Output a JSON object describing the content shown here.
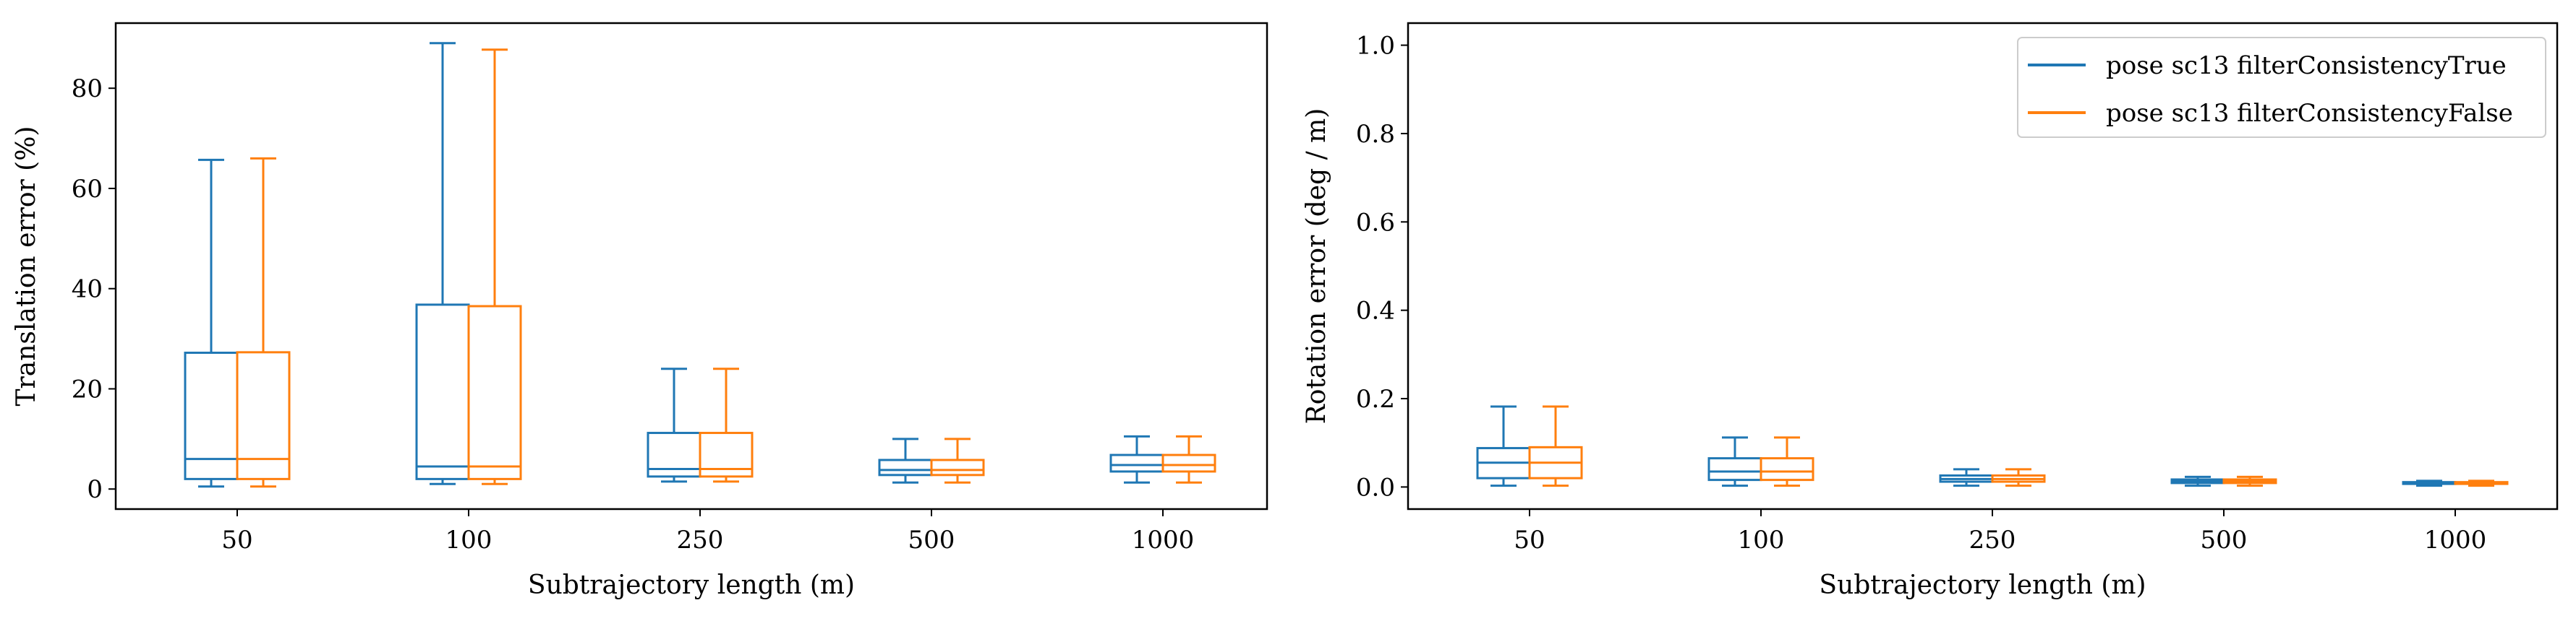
{
  "chart_data": [
    {
      "type": "box",
      "xlabel": "Subtrajectory length (m)",
      "ylabel": "Translation error (%)",
      "categories": [
        "50",
        "100",
        "250",
        "500",
        "1000"
      ],
      "ylim": [
        -4,
        93
      ],
      "yticks": [
        0,
        20,
        40,
        60,
        80
      ],
      "yticklabels": [
        "0",
        "20",
        "40",
        "60",
        "80"
      ],
      "grid": false,
      "series": [
        {
          "name": "pose sc13 filterConsistencyTrue",
          "color": "#1f77b4",
          "boxes": [
            {
              "whislo": 0.5,
              "q1": 2.0,
              "med": 6.0,
              "q3": 27.2,
              "whishi": 65.7
            },
            {
              "whislo": 1.0,
              "q1": 2.0,
              "med": 4.5,
              "q3": 36.8,
              "whishi": 89.0
            },
            {
              "whislo": 1.5,
              "q1": 2.5,
              "med": 4.0,
              "q3": 11.2,
              "whishi": 24.0
            },
            {
              "whislo": 1.3,
              "q1": 2.8,
              "med": 3.8,
              "q3": 5.8,
              "whishi": 10.0
            },
            {
              "whislo": 1.3,
              "q1": 3.5,
              "med": 4.8,
              "q3": 6.8,
              "whishi": 10.5
            }
          ]
        },
        {
          "name": "pose sc13 filterConsistencyFalse",
          "color": "#ff7f0e",
          "boxes": [
            {
              "whislo": 0.5,
              "q1": 2.0,
              "med": 6.0,
              "q3": 27.3,
              "whishi": 66.0
            },
            {
              "whislo": 1.0,
              "q1": 2.0,
              "med": 4.5,
              "q3": 36.5,
              "whishi": 87.7
            },
            {
              "whislo": 1.5,
              "q1": 2.5,
              "med": 4.0,
              "q3": 11.2,
              "whishi": 24.0
            },
            {
              "whislo": 1.3,
              "q1": 2.8,
              "med": 3.8,
              "q3": 5.8,
              "whishi": 10.0
            },
            {
              "whislo": 1.3,
              "q1": 3.5,
              "med": 4.8,
              "q3": 6.8,
              "whishi": 10.5
            }
          ]
        }
      ]
    },
    {
      "type": "box",
      "xlabel": "Subtrajectory length (m)",
      "ylabel": "Rotation error (deg / m)",
      "categories": [
        "50",
        "100",
        "250",
        "500",
        "1000"
      ],
      "ylim": [
        -0.05,
        1.05
      ],
      "yticks": [
        0,
        0.2,
        0.4,
        0.6,
        0.8,
        1.0
      ],
      "yticklabels": [
        "0.0",
        "0.2",
        "0.4",
        "0.6",
        "0.8",
        "1.0"
      ],
      "grid": false,
      "legend": "top-right",
      "series": [
        {
          "name": "pose sc13 filterConsistencyTrue",
          "color": "#1f77b4",
          "boxes": [
            {
              "whislo": 0.003,
              "q1": 0.02,
              "med": 0.055,
              "q3": 0.088,
              "whishi": 0.182
            },
            {
              "whislo": 0.003,
              "q1": 0.016,
              "med": 0.035,
              "q3": 0.065,
              "whishi": 0.112
            },
            {
              "whislo": 0.003,
              "q1": 0.012,
              "med": 0.018,
              "q3": 0.026,
              "whishi": 0.04
            },
            {
              "whislo": 0.003,
              "q1": 0.009,
              "med": 0.013,
              "q3": 0.017,
              "whishi": 0.023
            },
            {
              "whislo": 0.003,
              "q1": 0.007,
              "med": 0.009,
              "q3": 0.011,
              "whishi": 0.014
            }
          ]
        },
        {
          "name": "pose sc13 filterConsistencyFalse",
          "color": "#ff7f0e",
          "boxes": [
            {
              "whislo": 0.003,
              "q1": 0.02,
              "med": 0.055,
              "q3": 0.09,
              "whishi": 0.182
            },
            {
              "whislo": 0.003,
              "q1": 0.016,
              "med": 0.035,
              "q3": 0.065,
              "whishi": 0.112
            },
            {
              "whislo": 0.003,
              "q1": 0.012,
              "med": 0.018,
              "q3": 0.026,
              "whishi": 0.04
            },
            {
              "whislo": 0.003,
              "q1": 0.009,
              "med": 0.013,
              "q3": 0.017,
              "whishi": 0.023
            },
            {
              "whislo": 0.003,
              "q1": 0.007,
              "med": 0.009,
              "q3": 0.011,
              "whishi": 0.014
            }
          ]
        }
      ]
    }
  ]
}
